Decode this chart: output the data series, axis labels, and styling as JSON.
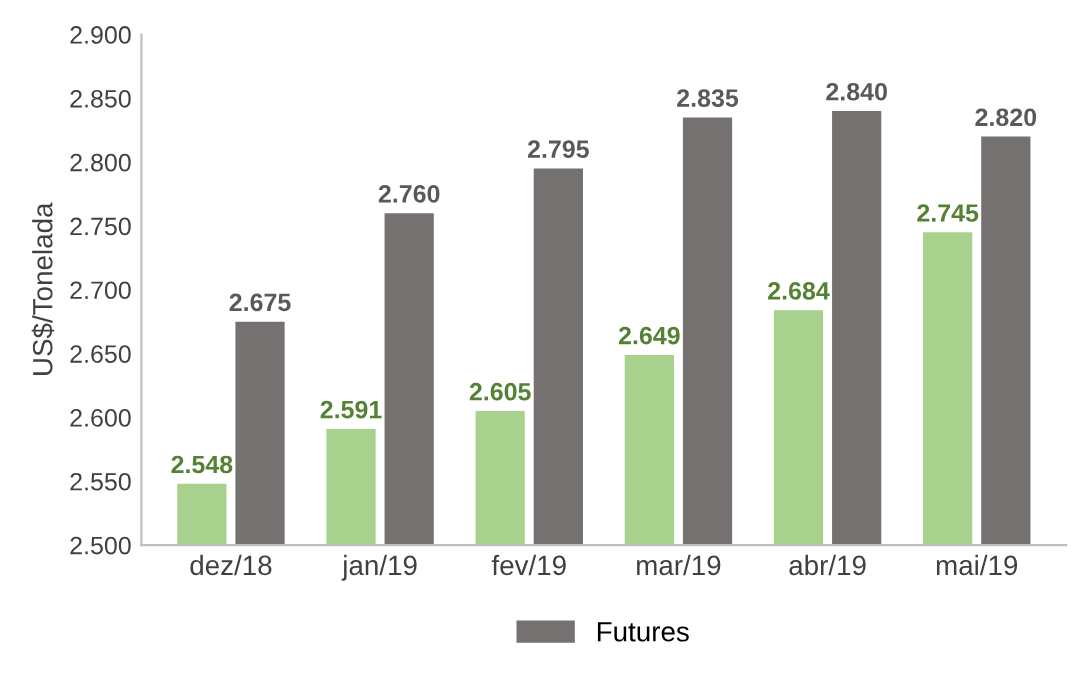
{
  "chart_data": {
    "type": "bar",
    "ylabel": "US$/Tonelada",
    "categories": [
      "dez/18",
      "jan/19",
      "fev/19",
      "mar/19",
      "abr/19",
      "mai/19"
    ],
    "series": [
      {
        "color": "#a9d18e",
        "values": [
          2548,
          2591,
          2605,
          2649,
          2684,
          2745
        ],
        "value_labels": [
          "2.548",
          "2.591",
          "2.605",
          "2.649",
          "2.684",
          "2.745"
        ]
      },
      {
        "name": "Futures",
        "color": "#767171",
        "values": [
          2675,
          2760,
          2795,
          2835,
          2840,
          2820
        ],
        "value_labels": [
          "2.675",
          "2.760",
          "2.795",
          "2.835",
          "2.840",
          "2.820"
        ]
      }
    ],
    "ylim": [
      2500,
      2900
    ],
    "yticks": [
      {
        "value": 2500,
        "label": "2.500"
      },
      {
        "value": 2550,
        "label": "2.550"
      },
      {
        "value": 2600,
        "label": "2.600"
      },
      {
        "value": 2650,
        "label": "2.650"
      },
      {
        "value": 2700,
        "label": "2.700"
      },
      {
        "value": 2750,
        "label": "2.750"
      },
      {
        "value": 2800,
        "label": "2.800"
      },
      {
        "value": 2850,
        "label": "2.850"
      },
      {
        "value": 2900,
        "label": "2.900"
      }
    ],
    "grid": false,
    "legend": "bottom"
  }
}
